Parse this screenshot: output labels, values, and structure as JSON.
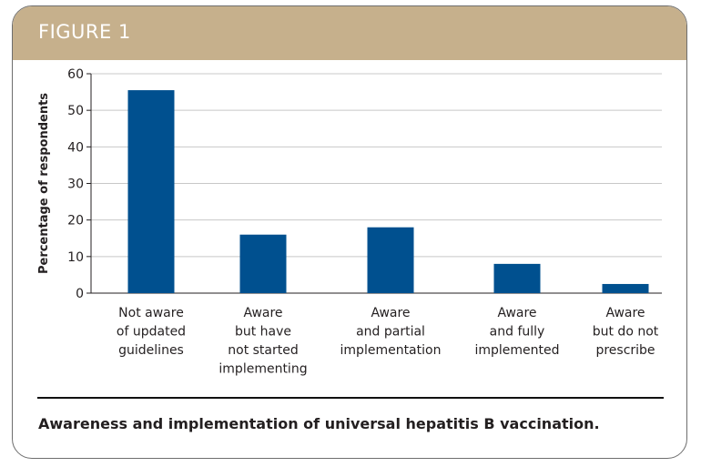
{
  "figure": {
    "label": "FIGURE 1",
    "caption": "Awareness and implementation of universal hepatitis B vaccination."
  },
  "colors": {
    "header": "#c6b08c",
    "bar": "#00508f",
    "grid": "#c8c8c8"
  },
  "chart_data": {
    "type": "bar",
    "title": "",
    "xlabel": "",
    "ylabel": "Percentage of respondents",
    "ylim": [
      0,
      60
    ],
    "yticks": [
      0,
      10,
      20,
      30,
      40,
      50,
      60
    ],
    "grid": true,
    "categories": [
      [
        "Not aware",
        "of updated",
        "guidelines"
      ],
      [
        "Aware",
        "but have",
        "not started",
        "implementing"
      ],
      [
        "Aware",
        "and partial",
        "implementation"
      ],
      [
        "Aware",
        "and fully",
        "implemented"
      ],
      [
        "Aware",
        "but do not",
        "prescribe"
      ]
    ],
    "values": [
      55.5,
      16,
      18,
      8,
      2.5
    ]
  }
}
